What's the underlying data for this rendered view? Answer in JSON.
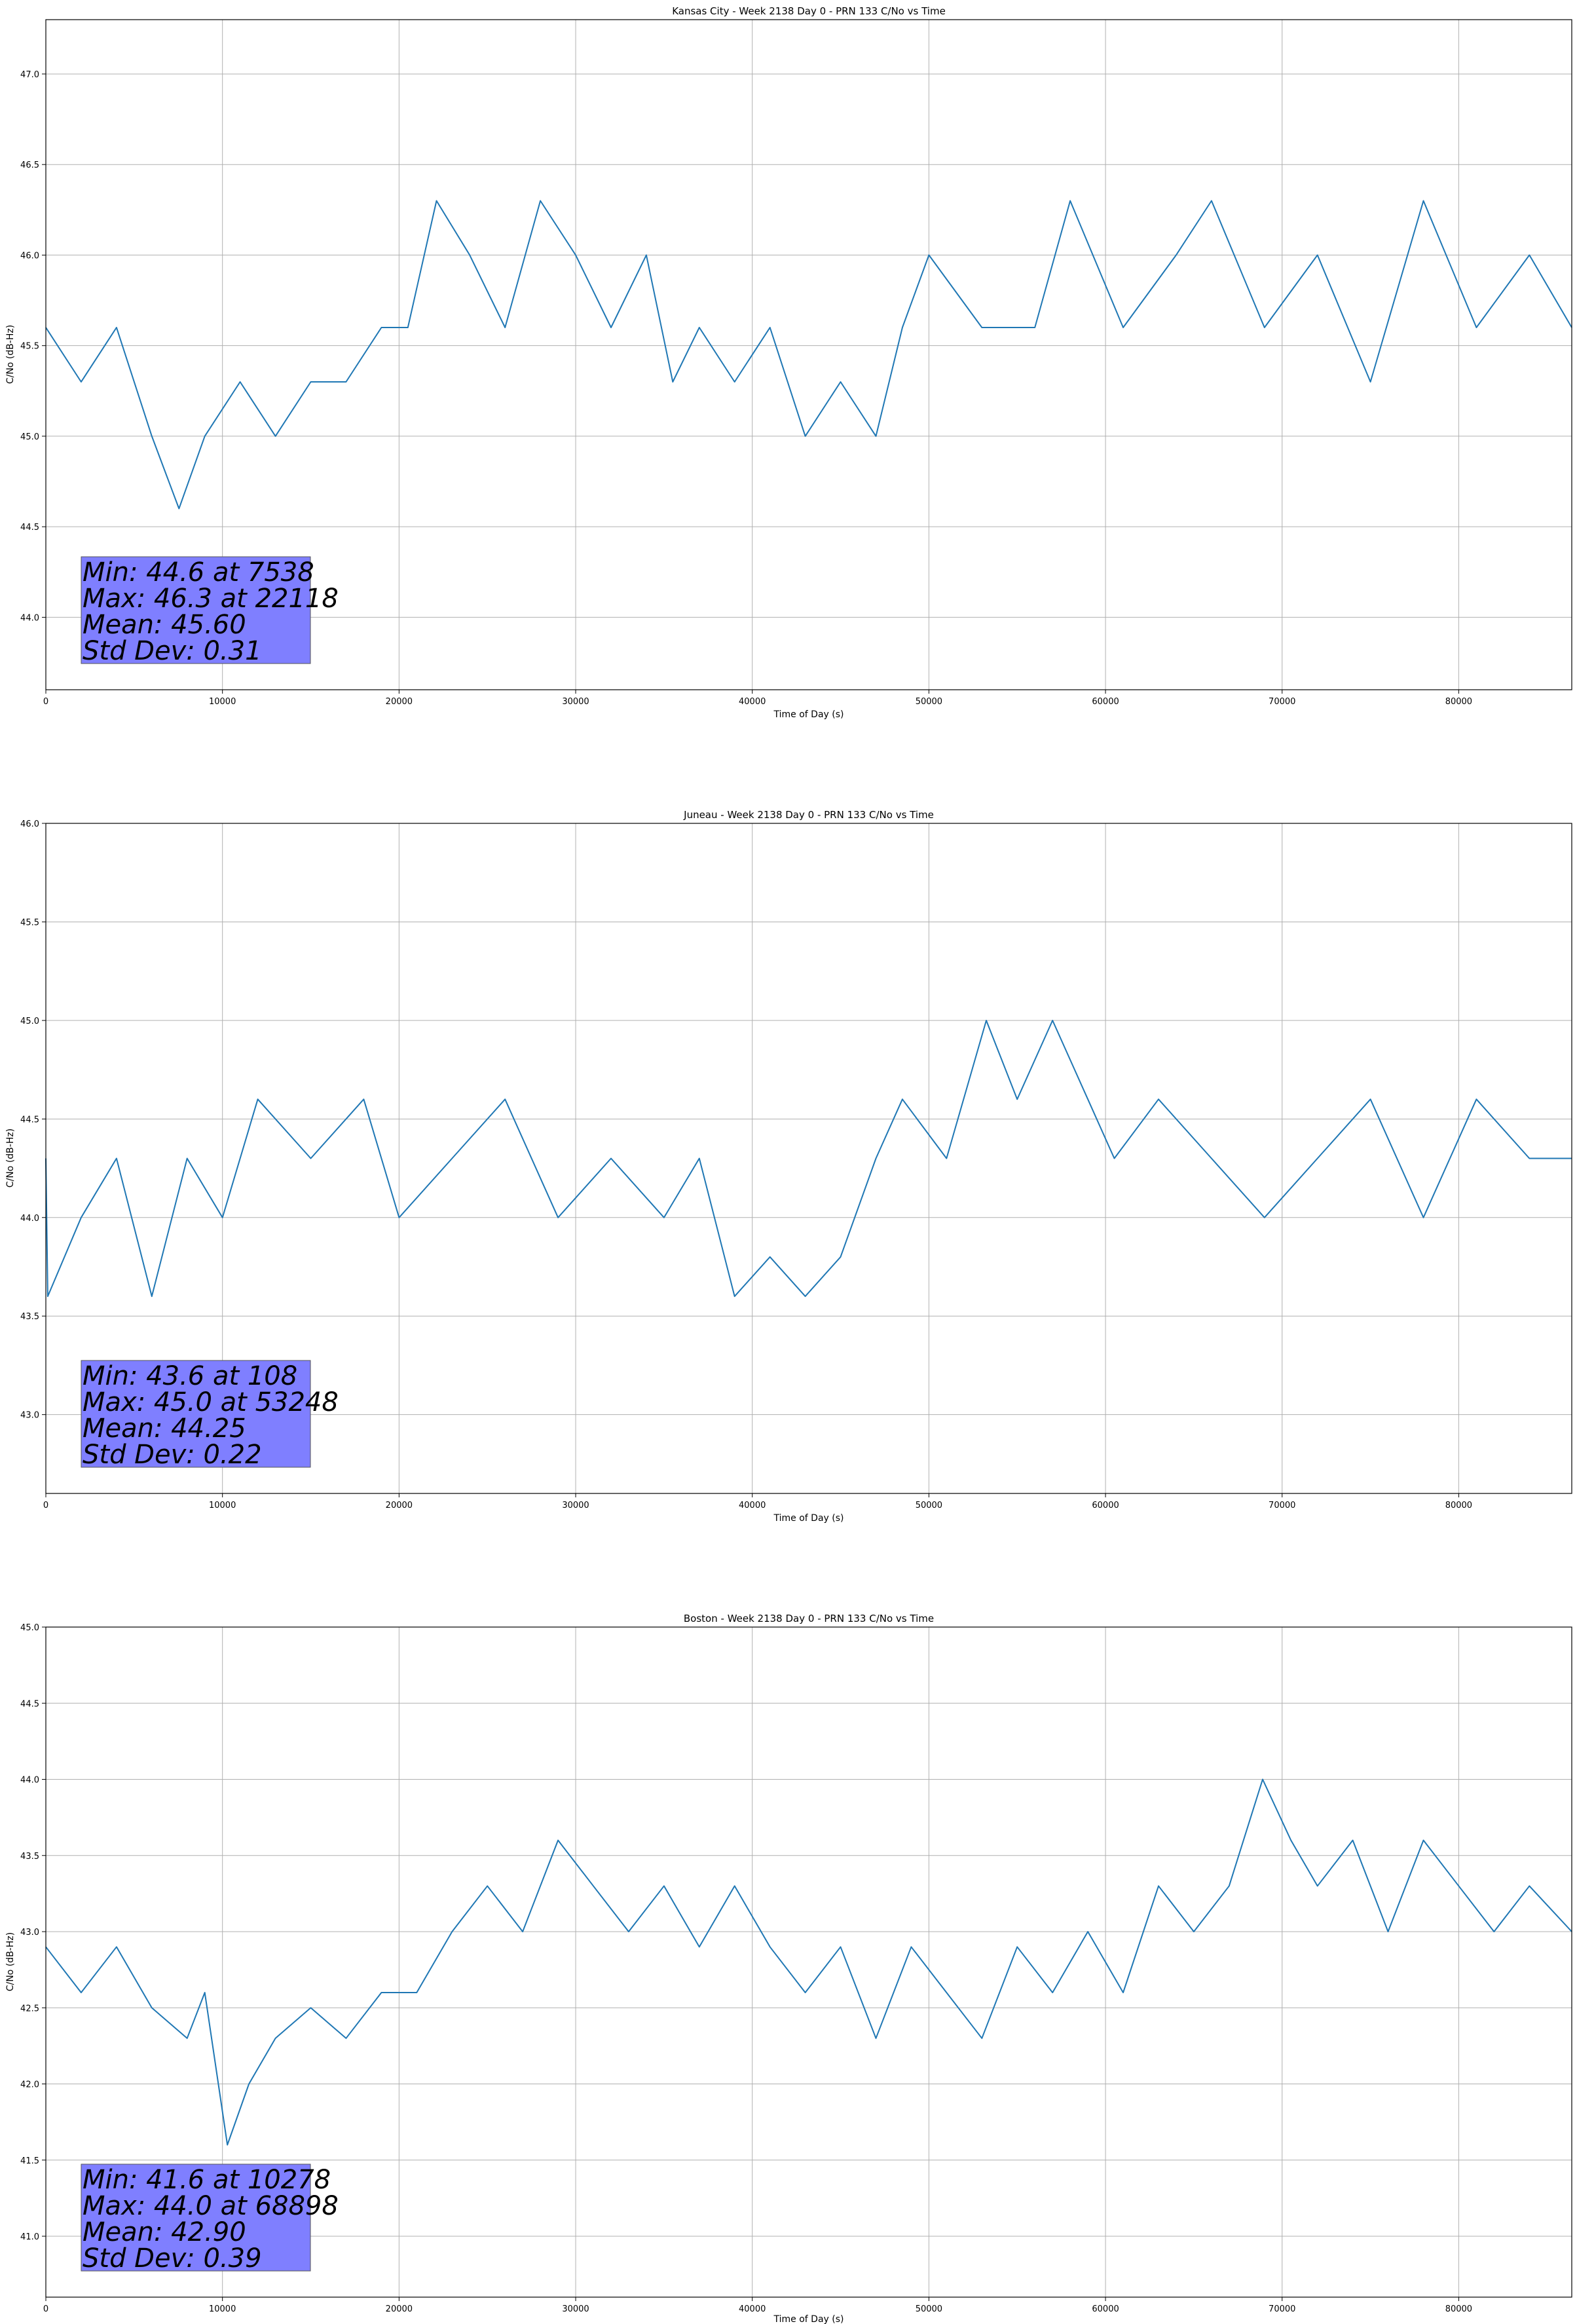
{
  "chart_data": [
    {
      "type": "line",
      "title": "Kansas City - Week 2138 Day 0 - PRN 133 C/No vs Time",
      "xlabel": "Time of Day (s)",
      "ylabel": "C/No (dB-Hz)",
      "xlim": [
        0,
        86400
      ],
      "ylim": [
        43.6,
        47.3
      ],
      "xticks": [
        "0",
        "10000",
        "20000",
        "30000",
        "40000",
        "50000",
        "60000",
        "70000",
        "80000"
      ],
      "yticks": [
        "44.0",
        "44.5",
        "45.0",
        "45.5",
        "46.0",
        "46.5",
        "47.0"
      ],
      "grid": true,
      "color": "#1f77b4",
      "series": [
        {
          "x": [
            0,
            2000,
            4000,
            6000,
            7538,
            9000,
            11000,
            13000,
            15000,
            17000,
            19000,
            20500,
            22118,
            24000,
            26000,
            28000,
            30000,
            32000,
            34000,
            35500,
            37000,
            39000,
            41000,
            43000,
            45000,
            47000,
            48500,
            50000,
            53000,
            56000,
            58000,
            61000,
            64000,
            66000,
            69000,
            72000,
            75000,
            78000,
            81000,
            84000,
            86400
          ],
          "y": [
            45.6,
            45.3,
            45.6,
            45.0,
            44.6,
            45.0,
            45.3,
            45.0,
            45.3,
            45.3,
            45.6,
            45.6,
            46.3,
            46.0,
            45.6,
            46.3,
            46.0,
            45.6,
            46.0,
            45.3,
            45.6,
            45.3,
            45.6,
            45.0,
            45.3,
            45.0,
            45.6,
            46.0,
            45.6,
            45.6,
            46.3,
            45.6,
            46.0,
            46.3,
            45.6,
            46.0,
            45.3,
            46.3,
            45.6,
            46.0,
            45.6
          ]
        }
      ],
      "stats": [
        "Min: 44.6 at 7538",
        "Max: 46.3 at 22118",
        "Mean: 45.60",
        "Std Dev: 0.31"
      ]
    },
    {
      "type": "line",
      "title": "Juneau - Week 2138 Day 0 - PRN 133 C/No vs Time",
      "xlabel": "Time of Day (s)",
      "ylabel": "C/No (dB-Hz)",
      "xlim": [
        0,
        86400
      ],
      "ylim": [
        42.6,
        46.0
      ],
      "xticks": [
        "0",
        "10000",
        "20000",
        "30000",
        "40000",
        "50000",
        "60000",
        "70000",
        "80000"
      ],
      "yticks": [
        "43.0",
        "43.5",
        "44.0",
        "44.5",
        "45.0",
        "45.5",
        "46.0"
      ],
      "grid": true,
      "color": "#1f77b4",
      "series": [
        {
          "x": [
            0,
            108,
            2000,
            4000,
            6000,
            8000,
            10000,
            12000,
            15000,
            18000,
            20000,
            23000,
            26000,
            29000,
            32000,
            35000,
            37000,
            39000,
            41000,
            43000,
            45000,
            47000,
            48500,
            51000,
            53248,
            55000,
            57000,
            59000,
            60500,
            63000,
            66000,
            69000,
            72000,
            75000,
            78000,
            81000,
            84000,
            86400
          ],
          "y": [
            44.3,
            43.6,
            44.0,
            44.3,
            43.6,
            44.3,
            44.0,
            44.6,
            44.3,
            44.6,
            44.0,
            44.3,
            44.6,
            44.0,
            44.3,
            44.0,
            44.3,
            43.6,
            43.8,
            43.6,
            43.8,
            44.3,
            44.6,
            44.3,
            45.0,
            44.6,
            45.0,
            44.6,
            44.3,
            44.6,
            44.3,
            44.0,
            44.3,
            44.6,
            44.0,
            44.6,
            44.3,
            44.3
          ]
        }
      ],
      "stats": [
        "Min: 43.6 at 108",
        "Max: 45.0 at 53248",
        "Mean: 44.25",
        "Std Dev: 0.22"
      ]
    },
    {
      "type": "line",
      "title": "Boston - Week 2138 Day 0 - PRN 133 C/No vs Time",
      "xlabel": "Time of Day (s)",
      "ylabel": "C/No (dB-Hz)",
      "xlim": [
        0,
        86400
      ],
      "ylim": [
        40.6,
        45.0
      ],
      "xticks": [
        "0",
        "10000",
        "20000",
        "30000",
        "40000",
        "50000",
        "60000",
        "70000",
        "80000"
      ],
      "yticks": [
        "41.0",
        "41.5",
        "42.0",
        "42.5",
        "43.0",
        "43.5",
        "44.0",
        "44.5",
        "45.0"
      ],
      "grid": true,
      "color": "#1f77b4",
      "series": [
        {
          "x": [
            0,
            2000,
            4000,
            6000,
            8000,
            9000,
            10278,
            11500,
            13000,
            15000,
            17000,
            19000,
            21000,
            23000,
            25000,
            27000,
            29000,
            31000,
            33000,
            35000,
            37000,
            39000,
            41000,
            43000,
            45000,
            47000,
            49000,
            51000,
            53000,
            55000,
            57000,
            59000,
            61000,
            63000,
            65000,
            67000,
            68898,
            70500,
            72000,
            74000,
            76000,
            78000,
            80000,
            82000,
            84000,
            86400
          ],
          "y": [
            42.9,
            42.6,
            42.9,
            42.5,
            42.3,
            42.6,
            41.6,
            42.0,
            42.3,
            42.5,
            42.3,
            42.6,
            42.6,
            43.0,
            43.3,
            43.0,
            43.6,
            43.3,
            43.0,
            43.3,
            42.9,
            43.3,
            42.9,
            42.6,
            42.9,
            42.3,
            42.9,
            42.6,
            42.3,
            42.9,
            42.6,
            43.0,
            42.6,
            43.3,
            43.0,
            43.3,
            44.0,
            43.6,
            43.3,
            43.6,
            43.0,
            43.6,
            43.3,
            43.0,
            43.3,
            43.0
          ]
        }
      ],
      "stats": [
        "Min: 41.6 at 10278",
        "Max: 44.0 at 68898",
        "Mean: 42.90",
        "Std Dev: 0.39"
      ]
    }
  ]
}
